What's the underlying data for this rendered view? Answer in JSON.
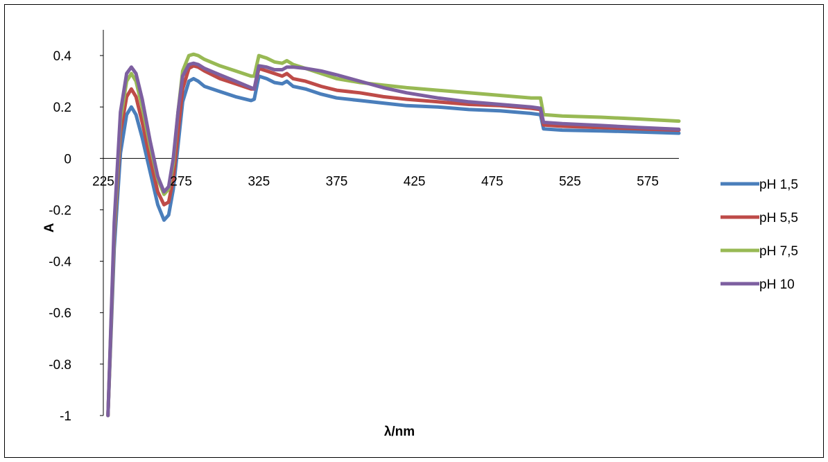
{
  "chart_data": {
    "type": "line",
    "title": "",
    "xlabel": "λ/nm",
    "ylabel": "A",
    "xlim": [
      225,
      595
    ],
    "ylim": [
      -1,
      0.5
    ],
    "x_ticks": [
      "225",
      "275",
      "325",
      "375",
      "425",
      "475",
      "525",
      "575"
    ],
    "y_ticks": [
      "-1",
      "-0.8",
      "-0.6",
      "-0.4",
      "-0.2",
      "0",
      "0.2",
      "0.4"
    ],
    "grid": false,
    "legend_position": "right",
    "series": [
      {
        "name": "pH 1,5",
        "color": "#4a7ebb",
        "points": [
          [
            228,
            -1
          ],
          [
            232,
            -0.35
          ],
          [
            236,
            0.02
          ],
          [
            240,
            0.17
          ],
          [
            243,
            0.2
          ],
          [
            246,
            0.17
          ],
          [
            250,
            0.08
          ],
          [
            255,
            -0.05
          ],
          [
            260,
            -0.18
          ],
          [
            264,
            -0.24
          ],
          [
            267,
            -0.22
          ],
          [
            270,
            -0.12
          ],
          [
            273,
            0.05
          ],
          [
            276,
            0.22
          ],
          [
            280,
            0.3
          ],
          [
            283,
            0.31
          ],
          [
            286,
            0.3
          ],
          [
            290,
            0.28
          ],
          [
            300,
            0.26
          ],
          [
            310,
            0.24
          ],
          [
            320,
            0.225
          ],
          [
            322,
            0.23
          ],
          [
            325,
            0.32
          ],
          [
            330,
            0.31
          ],
          [
            335,
            0.295
          ],
          [
            340,
            0.29
          ],
          [
            343,
            0.3
          ],
          [
            347,
            0.28
          ],
          [
            355,
            0.27
          ],
          [
            365,
            0.25
          ],
          [
            375,
            0.235
          ],
          [
            390,
            0.225
          ],
          [
            405,
            0.215
          ],
          [
            420,
            0.205
          ],
          [
            440,
            0.2
          ],
          [
            460,
            0.19
          ],
          [
            480,
            0.185
          ],
          [
            500,
            0.175
          ],
          [
            506,
            0.17
          ],
          [
            508,
            0.115
          ],
          [
            520,
            0.11
          ],
          [
            545,
            0.107
          ],
          [
            570,
            0.103
          ],
          [
            595,
            0.098
          ]
        ]
      },
      {
        "name": "pH 5,5",
        "color": "#be4b48",
        "points": [
          [
            228,
            -1
          ],
          [
            232,
            -0.3
          ],
          [
            236,
            0.1
          ],
          [
            240,
            0.24
          ],
          [
            243,
            0.27
          ],
          [
            246,
            0.24
          ],
          [
            250,
            0.14
          ],
          [
            255,
            0.0
          ],
          [
            260,
            -0.13
          ],
          [
            264,
            -0.18
          ],
          [
            267,
            -0.17
          ],
          [
            270,
            -0.08
          ],
          [
            273,
            0.1
          ],
          [
            276,
            0.27
          ],
          [
            280,
            0.35
          ],
          [
            283,
            0.36
          ],
          [
            286,
            0.355
          ],
          [
            290,
            0.34
          ],
          [
            300,
            0.31
          ],
          [
            310,
            0.29
          ],
          [
            320,
            0.27
          ],
          [
            322,
            0.27
          ],
          [
            325,
            0.35
          ],
          [
            330,
            0.34
          ],
          [
            335,
            0.33
          ],
          [
            340,
            0.32
          ],
          [
            343,
            0.33
          ],
          [
            347,
            0.31
          ],
          [
            355,
            0.3
          ],
          [
            365,
            0.28
          ],
          [
            375,
            0.265
          ],
          [
            390,
            0.255
          ],
          [
            405,
            0.24
          ],
          [
            420,
            0.23
          ],
          [
            440,
            0.22
          ],
          [
            460,
            0.21
          ],
          [
            480,
            0.205
          ],
          [
            500,
            0.195
          ],
          [
            506,
            0.19
          ],
          [
            508,
            0.13
          ],
          [
            520,
            0.125
          ],
          [
            545,
            0.12
          ],
          [
            570,
            0.115
          ],
          [
            595,
            0.11
          ]
        ]
      },
      {
        "name": "pH 7,5",
        "color": "#98b954",
        "points": [
          [
            228,
            -1
          ],
          [
            232,
            -0.28
          ],
          [
            236,
            0.15
          ],
          [
            240,
            0.3
          ],
          [
            243,
            0.33
          ],
          [
            246,
            0.3
          ],
          [
            250,
            0.2
          ],
          [
            255,
            0.05
          ],
          [
            260,
            -0.08
          ],
          [
            264,
            -0.14
          ],
          [
            267,
            -0.12
          ],
          [
            270,
            -0.02
          ],
          [
            273,
            0.18
          ],
          [
            276,
            0.34
          ],
          [
            280,
            0.4
          ],
          [
            283,
            0.405
          ],
          [
            286,
            0.4
          ],
          [
            290,
            0.385
          ],
          [
            300,
            0.36
          ],
          [
            310,
            0.34
          ],
          [
            320,
            0.32
          ],
          [
            322,
            0.32
          ],
          [
            325,
            0.4
          ],
          [
            330,
            0.39
          ],
          [
            335,
            0.375
          ],
          [
            340,
            0.37
          ],
          [
            343,
            0.38
          ],
          [
            347,
            0.365
          ],
          [
            355,
            0.35
          ],
          [
            365,
            0.33
          ],
          [
            375,
            0.31
          ],
          [
            390,
            0.295
          ],
          [
            405,
            0.285
          ],
          [
            420,
            0.275
          ],
          [
            440,
            0.265
          ],
          [
            460,
            0.255
          ],
          [
            480,
            0.245
          ],
          [
            500,
            0.235
          ],
          [
            506,
            0.235
          ],
          [
            508,
            0.17
          ],
          [
            520,
            0.165
          ],
          [
            545,
            0.16
          ],
          [
            570,
            0.153
          ],
          [
            595,
            0.145
          ]
        ]
      },
      {
        "name": "pH 10",
        "color": "#7d5fa0",
        "points": [
          [
            228,
            -1
          ],
          [
            232,
            -0.25
          ],
          [
            236,
            0.18
          ],
          [
            240,
            0.33
          ],
          [
            243,
            0.355
          ],
          [
            246,
            0.33
          ],
          [
            250,
            0.23
          ],
          [
            255,
            0.07
          ],
          [
            260,
            -0.07
          ],
          [
            264,
            -0.13
          ],
          [
            267,
            -0.11
          ],
          [
            270,
            0.0
          ],
          [
            273,
            0.18
          ],
          [
            276,
            0.32
          ],
          [
            280,
            0.365
          ],
          [
            283,
            0.37
          ],
          [
            286,
            0.365
          ],
          [
            290,
            0.35
          ],
          [
            300,
            0.325
          ],
          [
            310,
            0.3
          ],
          [
            320,
            0.275
          ],
          [
            322,
            0.27
          ],
          [
            325,
            0.36
          ],
          [
            330,
            0.355
          ],
          [
            335,
            0.345
          ],
          [
            340,
            0.345
          ],
          [
            343,
            0.355
          ],
          [
            347,
            0.355
          ],
          [
            355,
            0.35
          ],
          [
            365,
            0.34
          ],
          [
            375,
            0.325
          ],
          [
            390,
            0.3
          ],
          [
            405,
            0.275
          ],
          [
            420,
            0.255
          ],
          [
            440,
            0.235
          ],
          [
            460,
            0.22
          ],
          [
            480,
            0.21
          ],
          [
            500,
            0.2
          ],
          [
            506,
            0.195
          ],
          [
            508,
            0.14
          ],
          [
            520,
            0.135
          ],
          [
            545,
            0.128
          ],
          [
            570,
            0.12
          ],
          [
            595,
            0.113
          ]
        ]
      }
    ]
  }
}
